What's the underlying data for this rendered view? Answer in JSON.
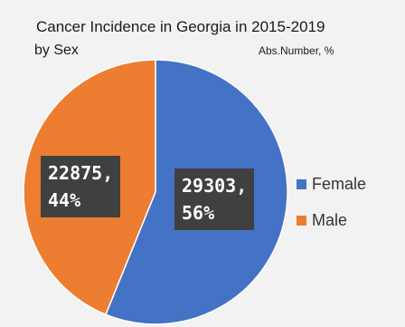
{
  "chart_data": {
    "type": "pie",
    "title": "Cancer Incidence in Georgia in 2015-2019",
    "subtitle_left": "by Sex",
    "subtitle_right": "Abs.Number,  %",
    "legend_position": "right",
    "slices": [
      {
        "name": "Female",
        "value": 29303,
        "percent": 56,
        "color": "#4472c4",
        "label_line1": "29303,",
        "label_line2": "56%"
      },
      {
        "name": "Male",
        "value": 22875,
        "percent": 44,
        "color": "#ed7d31",
        "label_line1": "22875,",
        "label_line2": "44%"
      }
    ]
  }
}
